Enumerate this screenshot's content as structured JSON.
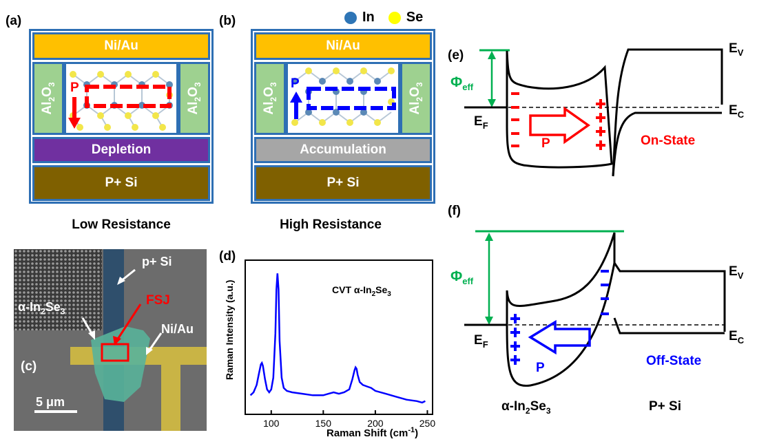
{
  "panels": {
    "a": {
      "label": "(a)",
      "top_layer": "Ni/Au",
      "side_left": "Al2O3",
      "side_right": "Al2O3",
      "pol": "P",
      "mid_layer": "Depletion",
      "bottom_layer": "P+ Si",
      "caption": "Low Resistance",
      "colors": {
        "top": "#ffc000",
        "mid": "#7030a0",
        "bottom": "#7f6000",
        "arrow": "#ff0000"
      }
    },
    "b": {
      "label": "(b)",
      "top_layer": "Ni/Au",
      "side_left": "Al2O3",
      "side_right": "Al2O3",
      "pol": "P",
      "mid_layer": "Accumulation",
      "bottom_layer": "P+ Si",
      "caption": "High Resistance",
      "legend": [
        {
          "name": "In",
          "color": "#2e75b6"
        },
        {
          "name": "Se",
          "color": "#ffff00"
        }
      ],
      "colors": {
        "top": "#ffc000",
        "mid": "#a6a6a6",
        "bottom": "#7f6000",
        "arrow": "#0000ff"
      }
    },
    "c": {
      "label": "(c)",
      "p_si": "p+ Si",
      "material": "α-In2Se3",
      "fsj": "FSJ",
      "ni_au": "Ni/Au",
      "scale": "5 μm"
    },
    "d": {
      "label": "(d)",
      "inset": "CVT α-In2Se3",
      "chart_data": {
        "type": "line",
        "xlabel": "Raman Shift (cm-1)",
        "ylabel": "Raman Intensity (a.u.)",
        "xlim": [
          75,
          255
        ],
        "ylim": [
          0,
          1.05
        ],
        "xticks": [
          100,
          150,
          200,
          250
        ],
        "color": "#0000ff",
        "x": [
          80,
          83,
          86,
          88,
          90,
          91,
          92,
          94,
          96,
          98,
          100,
          102,
          104,
          105,
          106,
          107,
          108,
          110,
          112,
          115,
          120,
          130,
          140,
          150,
          155,
          160,
          165,
          170,
          175,
          178,
          180,
          181,
          182,
          183,
          185,
          188,
          192,
          196,
          200,
          210,
          220,
          230,
          240,
          245,
          248
        ],
        "y": [
          0.13,
          0.15,
          0.2,
          0.27,
          0.34,
          0.35,
          0.33,
          0.24,
          0.17,
          0.15,
          0.17,
          0.25,
          0.55,
          0.85,
          0.96,
          0.85,
          0.5,
          0.25,
          0.18,
          0.16,
          0.15,
          0.14,
          0.13,
          0.13,
          0.14,
          0.15,
          0.14,
          0.15,
          0.17,
          0.24,
          0.3,
          0.32,
          0.31,
          0.27,
          0.22,
          0.2,
          0.19,
          0.18,
          0.16,
          0.14,
          0.12,
          0.1,
          0.09,
          0.08,
          0.09
        ]
      }
    },
    "e": {
      "label": "(e)",
      "phi": "Φ",
      "phi_sub": "eff",
      "ef": "E",
      "ef_sub": "F",
      "ev": "E",
      "ev_sub": "V",
      "ec": "E",
      "ec_sub": "C",
      "pol": "P",
      "state": "On-State",
      "colors": {
        "phi": "#00b050",
        "charge": "#ff0000",
        "state": "#ff0000"
      }
    },
    "f": {
      "label": "(f)",
      "phi": "Φ",
      "phi_sub": "eff",
      "ef": "E",
      "ef_sub": "F",
      "ev": "E",
      "ev_sub": "V",
      "ec": "E",
      "ec_sub": "C",
      "pol": "P",
      "state": "Off-State",
      "material_left": "α-In2Se3",
      "material_right": "P+ Si",
      "colors": {
        "phi": "#00b050",
        "charge": "#0000ff",
        "state": "#0000ff"
      }
    }
  }
}
